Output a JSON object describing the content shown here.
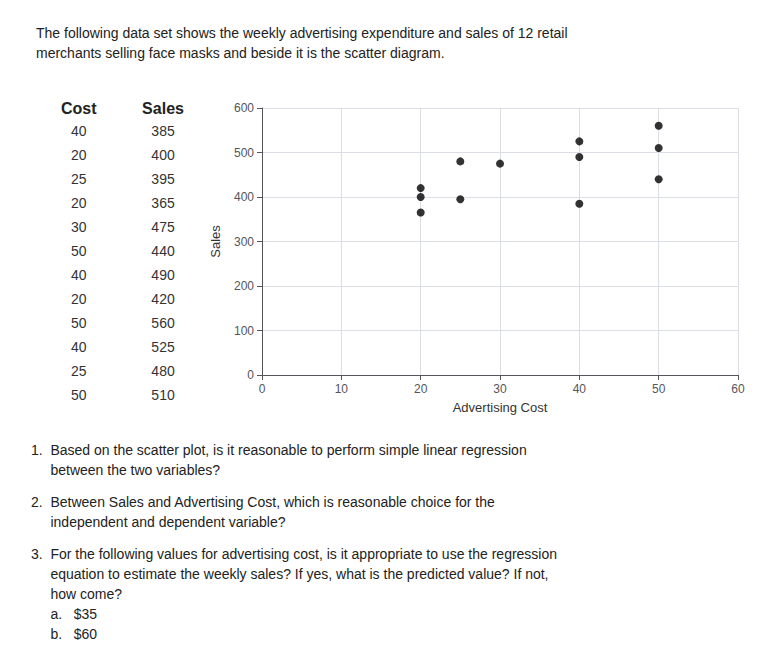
{
  "chart_data": {
    "type": "scatter",
    "title": "The following data set shows the weekly advertising expenditure and sales of 12 retail\nmerchants selling face masks and beside it is the scatter diagram.",
    "x": [
      40,
      20,
      25,
      20,
      30,
      50,
      40,
      20,
      50,
      40,
      25,
      50
    ],
    "values": [
      385,
      400,
      395,
      365,
      475,
      440,
      490,
      420,
      560,
      525,
      480,
      510
    ],
    "color": "#000000",
    "xlabel": "Advertising Cost",
    "ylabel": "Sales",
    "xlim": [
      0,
      60
    ],
    "ylim": [
      0,
      600
    ],
    "xticks": [
      0,
      10,
      20,
      30,
      40,
      50,
      60
    ],
    "yticks": [
      0,
      100,
      200,
      300,
      400,
      500,
      600
    ],
    "grid": true,
    "table": {
      "headers": [
        "Cost",
        "Sales"
      ],
      "rows": [
        [
          40,
          385
        ],
        [
          20,
          400
        ],
        [
          25,
          395
        ],
        [
          20,
          365
        ],
        [
          30,
          475
        ],
        [
          50,
          440
        ],
        [
          40,
          490
        ],
        [
          20,
          420
        ],
        [
          50,
          560
        ],
        [
          40,
          525
        ],
        [
          25,
          480
        ],
        [
          50,
          510
        ]
      ]
    },
    "annotations": [
      "1.  Based on the scatter plot, is it reasonable to perform simple linear regression\n     between the two variables?",
      "2.  Between Sales and Advertising Cost, which is reasonable choice for the\n     independent and dependent variable?",
      "3.  For the following values for advertising cost, is it appropriate to use the regression\n     equation to estimate the weekly sales? If yes, what is the predicted value? If not,\n     how come?\n     a.   $35\n     b.   $60"
    ]
  }
}
